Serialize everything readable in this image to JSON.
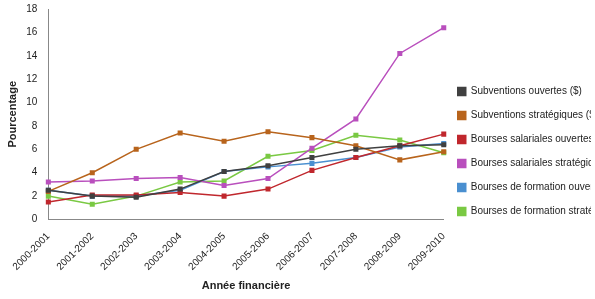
{
  "chart_data": {
    "type": "line",
    "x_label": "Année financière",
    "y_label": "Pourcentage",
    "categories": [
      "2000-2001",
      "2001-2002",
      "2002-2003",
      "2003-2004",
      "2004-2005",
      "2005-2006",
      "2006-2007",
      "2007-2008",
      "2008-2009",
      "2009-2010"
    ],
    "series": [
      {
        "name": "Subventions ouvertes ($)",
        "color": "#404040",
        "values": [
          2.5,
          2.0,
          1.9,
          2.6,
          4.1,
          4.6,
          5.3,
          6.0,
          6.3,
          6.4
        ]
      },
      {
        "name": "Subventions stratégiques ($)",
        "color": "#b8641c",
        "values": [
          2.4,
          4.0,
          6.0,
          7.4,
          6.7,
          7.5,
          7.0,
          6.3,
          5.1,
          5.8
        ]
      },
      {
        "name": "Bourses salariales ouvertes ($)",
        "color": "#c0272d",
        "values": [
          1.5,
          2.1,
          2.1,
          2.3,
          2.0,
          2.6,
          4.2,
          5.3,
          6.3,
          7.3
        ]
      },
      {
        "name": "Bourses salariales stratégiques ($)",
        "color": "#b94fbd",
        "values": [
          3.2,
          3.3,
          3.5,
          3.6,
          2.9,
          3.5,
          6.1,
          8.6,
          14.2,
          16.4
        ]
      },
      {
        "name": "Bourses de formation ouvertes ($)",
        "color": "#4a8fd0",
        "values": [
          2.5,
          2.0,
          2.0,
          2.5,
          4.1,
          4.5,
          4.8,
          5.3,
          6.2,
          6.5
        ]
      },
      {
        "name": "Bourses de formation stratégiques ($)",
        "color": "#7ac943",
        "values": [
          2.0,
          1.3,
          2.0,
          3.2,
          3.3,
          5.4,
          5.9,
          7.2,
          6.8,
          5.7
        ]
      }
    ],
    "ylim": [
      0,
      18
    ],
    "yticks": [
      0,
      2,
      4,
      6,
      8,
      10,
      12,
      14,
      16,
      18
    ],
    "grid": false,
    "legend": "right",
    "marker": "square"
  }
}
